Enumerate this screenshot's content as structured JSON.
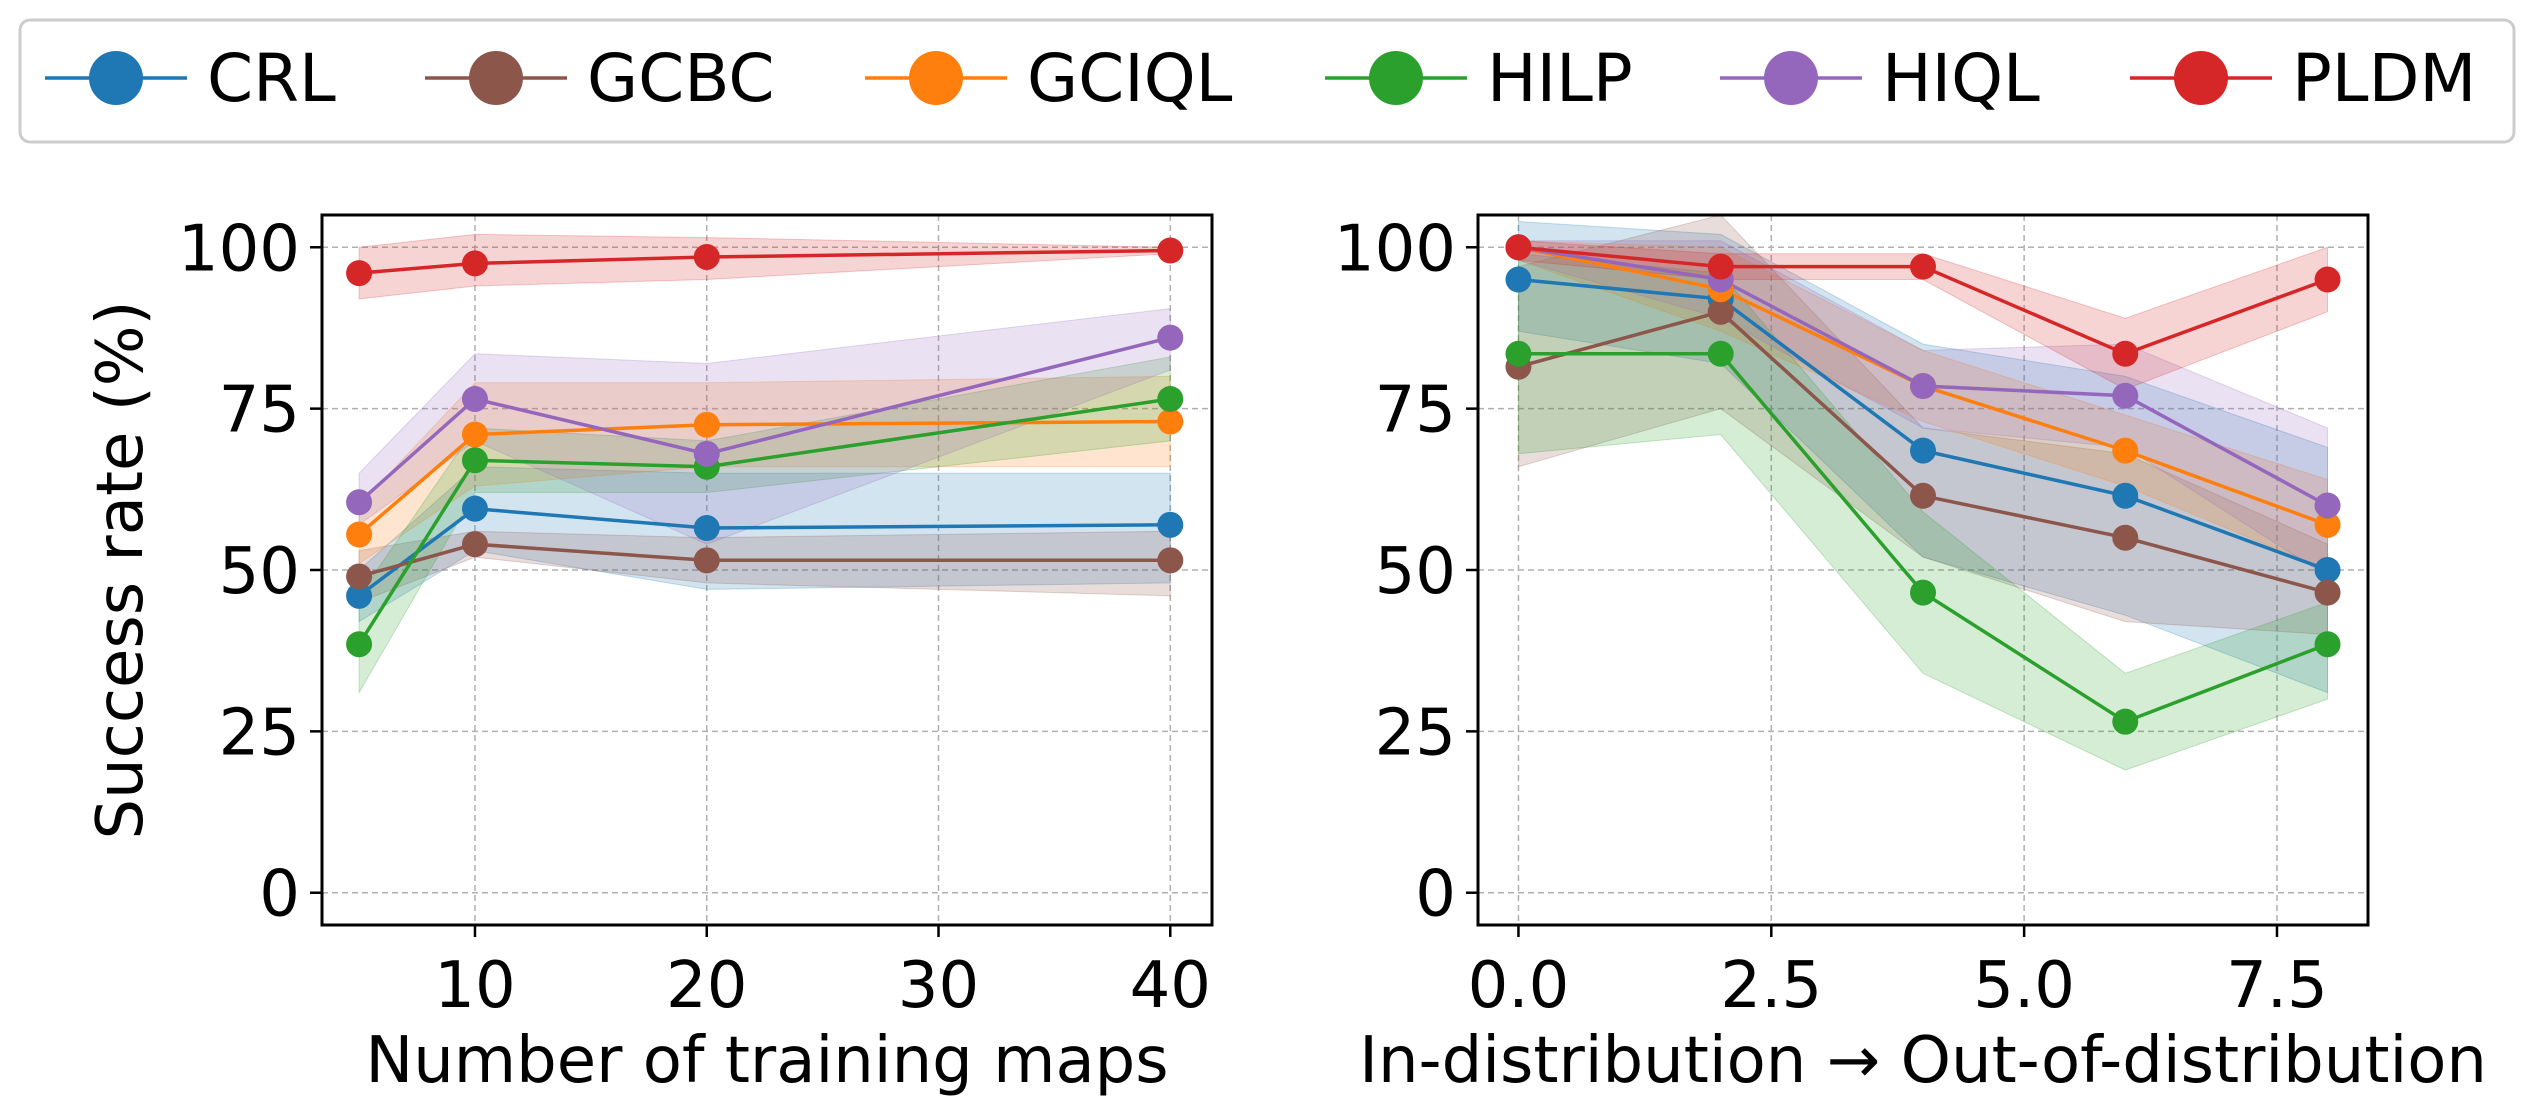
{
  "legend": {
    "items": [
      {
        "name": "CRL",
        "color": "#1f77b4"
      },
      {
        "name": "GCBC",
        "color": "#8c564b"
      },
      {
        "name": "GCIQL",
        "color": "#ff7f0e"
      },
      {
        "name": "HILP",
        "color": "#2ca02c"
      },
      {
        "name": "HIQL",
        "color": "#9467bd"
      },
      {
        "name": "PLDM",
        "color": "#d62728"
      }
    ]
  },
  "chart_data": [
    {
      "type": "line",
      "xlabel": "Number of training maps",
      "ylabel": "Success rate (%)",
      "xlim": [
        3.4,
        41.8
      ],
      "ylim": [
        -5,
        105
      ],
      "xticks": [
        10,
        20,
        30,
        40
      ],
      "yticks": [
        0,
        25,
        50,
        75,
        100
      ],
      "grid": true,
      "x": [
        5,
        10,
        20,
        40
      ],
      "series": [
        {
          "name": "CRL",
          "color": "#1f77b4",
          "values": [
            46,
            59.5,
            56.5,
            57
          ],
          "lower": [
            42,
            53,
            47,
            48
          ],
          "upper": [
            50,
            66,
            65,
            65
          ]
        },
        {
          "name": "GCBC",
          "color": "#8c564b",
          "values": [
            49,
            54,
            51.5,
            51.5
          ],
          "lower": [
            45,
            52,
            48,
            46
          ],
          "upper": [
            53,
            56,
            55,
            56
          ]
        },
        {
          "name": "GCIQL",
          "color": "#ff7f0e",
          "values": [
            55.5,
            71,
            72.5,
            73
          ],
          "lower": [
            51,
            63,
            66,
            66
          ],
          "upper": [
            60,
            79,
            79,
            80
          ]
        },
        {
          "name": "HILP",
          "color": "#2ca02c",
          "values": [
            38.5,
            67,
            66,
            76.5
          ],
          "lower": [
            31,
            62,
            62,
            70
          ],
          "upper": [
            46,
            72,
            70,
            83
          ]
        },
        {
          "name": "HIQL",
          "color": "#9467bd",
          "values": [
            60.5,
            76.5,
            68,
            86
          ],
          "lower": [
            57,
            70,
            54,
            81
          ],
          "upper": [
            65,
            83.5,
            82,
            90.5
          ]
        },
        {
          "name": "PLDM",
          "color": "#d62728",
          "values": [
            96,
            97.5,
            98.5,
            99.5
          ],
          "lower": [
            92,
            94,
            95,
            99
          ],
          "upper": [
            100,
            102,
            101.5,
            100
          ]
        }
      ]
    },
    {
      "type": "line",
      "xlabel": "In-distribution → Out-of-distribution",
      "ylabel": "",
      "xlim": [
        -0.4,
        8.4
      ],
      "ylim": [
        -5,
        105
      ],
      "xticks": [
        0.0,
        2.5,
        5.0,
        7.5
      ],
      "xtick_labels": [
        "0.0",
        "2.5",
        "5.0",
        "7.5"
      ],
      "yticks": [
        0,
        25,
        50,
        75,
        100
      ],
      "grid": true,
      "x": [
        0,
        2,
        4,
        6,
        8
      ],
      "series": [
        {
          "name": "CRL",
          "color": "#1f77b4",
          "values": [
            95,
            92,
            68.5,
            61.5,
            50
          ],
          "lower": [
            87,
            82,
            52,
            43,
            31
          ],
          "upper": [
            104,
            102,
            85,
            80,
            69
          ]
        },
        {
          "name": "GCBC",
          "color": "#8c564b",
          "values": [
            81.5,
            90,
            61.5,
            55,
            46.5
          ],
          "lower": [
            66,
            75,
            52,
            42,
            40
          ],
          "upper": [
            97,
            105,
            72,
            68,
            54
          ]
        },
        {
          "name": "GCIQL",
          "color": "#ff7f0e",
          "values": [
            100,
            93.5,
            78.5,
            68.5,
            57
          ],
          "lower": [
            98,
            87,
            73,
            63,
            50
          ],
          "upper": [
            101,
            100,
            84,
            74,
            64
          ]
        },
        {
          "name": "HILP",
          "color": "#2ca02c",
          "values": [
            83.5,
            83.5,
            46.5,
            26.5,
            38.5
          ],
          "lower": [
            68,
            71,
            34,
            19,
            30
          ],
          "upper": [
            99,
            96,
            59,
            34,
            45
          ]
        },
        {
          "name": "HIQL",
          "color": "#9467bd",
          "values": [
            100,
            95,
            78.5,
            77,
            60
          ],
          "lower": [
            98,
            89,
            72,
            69,
            49
          ],
          "upper": [
            101,
            101,
            84,
            85,
            72
          ]
        },
        {
          "name": "PLDM",
          "color": "#d62728",
          "values": [
            100,
            97,
            97,
            83.5,
            95
          ],
          "lower": [
            98,
            95,
            95,
            78,
            90
          ],
          "upper": [
            101,
            99,
            99,
            89,
            100
          ]
        }
      ]
    }
  ]
}
